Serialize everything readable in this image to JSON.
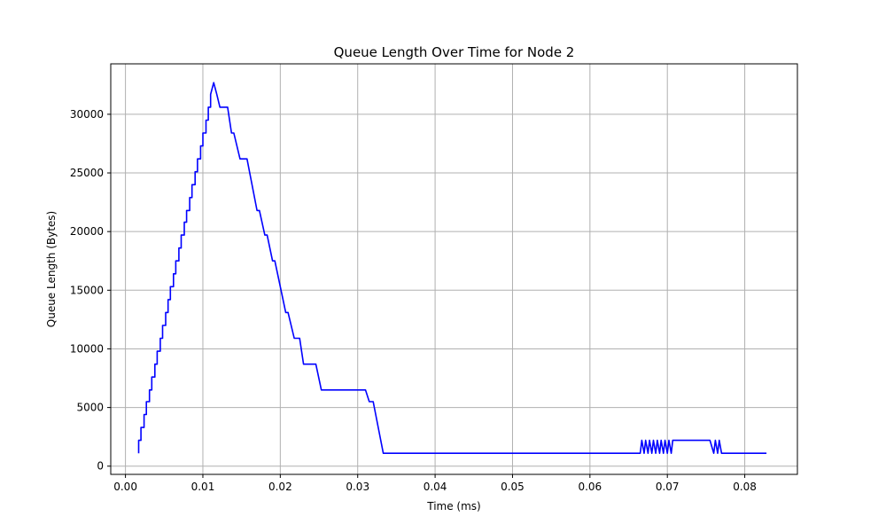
{
  "chart_data": {
    "type": "line",
    "title": "Queue Length Over Time for Node 2",
    "xlabel": "Time (ms)",
    "ylabel": "Queue Length (Bytes)",
    "xlim": [
      -0.0019,
      0.0868
    ],
    "ylim": [
      -700,
      34300
    ],
    "xticks": [
      0.0,
      0.01,
      0.02,
      0.03,
      0.04,
      0.05,
      0.06,
      0.07,
      0.08
    ],
    "xtick_labels": [
      "0.00",
      "0.01",
      "0.02",
      "0.03",
      "0.04",
      "0.05",
      "0.06",
      "0.07",
      "0.08"
    ],
    "yticks": [
      0,
      5000,
      10000,
      15000,
      20000,
      25000,
      30000
    ],
    "ytick_labels": [
      "0",
      "5000",
      "10000",
      "15000",
      "20000",
      "25000",
      "30000"
    ],
    "grid": true,
    "colors": {
      "line": "#0000ff",
      "grid": "#b0b0b0",
      "axes": "#000000"
    },
    "series": [
      {
        "x": [
          0.0017,
          0.0017,
          0.002,
          0.002,
          0.0024,
          0.0024,
          0.0027,
          0.0027,
          0.0031,
          0.0031,
          0.0034,
          0.0034,
          0.0038,
          0.0038,
          0.0041,
          0.0041,
          0.0045,
          0.0045,
          0.0048,
          0.0048,
          0.0052,
          0.0052,
          0.0055,
          0.0055,
          0.0058,
          0.0058,
          0.0062,
          0.0062,
          0.0065,
          0.0065,
          0.0069,
          0.0069,
          0.0072,
          0.0072,
          0.0076,
          0.0076,
          0.0079,
          0.0079,
          0.0083,
          0.0083,
          0.0086,
          0.0086,
          0.009,
          0.009,
          0.0093,
          0.0093,
          0.0097,
          0.0097,
          0.01,
          0.01,
          0.0104,
          0.0104,
          0.0107,
          0.0107,
          0.011,
          0.011,
          0.0114,
          0.0118,
          0.0122,
          0.0132,
          0.0137,
          0.014,
          0.0148,
          0.0157,
          0.017,
          0.0173,
          0.018,
          0.0183,
          0.019,
          0.0193,
          0.0207,
          0.021,
          0.0218,
          0.0225,
          0.023,
          0.0246,
          0.0253,
          0.0278,
          0.031,
          0.0315,
          0.032,
          0.0333,
          0.04,
          0.05,
          0.06,
          0.0665,
          0.0667,
          0.067,
          0.0672,
          0.0675,
          0.0677,
          0.068,
          0.0682,
          0.0685,
          0.0687,
          0.069,
          0.0692,
          0.0695,
          0.0697,
          0.07,
          0.0702,
          0.0705,
          0.0707,
          0.071,
          0.0755,
          0.076,
          0.0762,
          0.0765,
          0.0767,
          0.077,
          0.0772,
          0.0775,
          0.08,
          0.0828
        ],
        "y": [
          1100,
          2200,
          2200,
          3300,
          3300,
          4400,
          4400,
          5500,
          5500,
          6500,
          6500,
          7600,
          7600,
          8700,
          8700,
          9800,
          9800,
          10900,
          10900,
          12000,
          12000,
          13100,
          13100,
          14200,
          14200,
          15300,
          15300,
          16400,
          16400,
          17500,
          17500,
          18600,
          18600,
          19700,
          19700,
          20800,
          20800,
          21800,
          21800,
          22900,
          22900,
          24000,
          24000,
          25100,
          25100,
          26200,
          26200,
          27300,
          27300,
          28400,
          28400,
          29500,
          29500,
          30600,
          30600,
          31700,
          32700,
          31700,
          30600,
          30600,
          28400,
          28400,
          26200,
          26200,
          21800,
          21800,
          19700,
          19700,
          17500,
          17500,
          13100,
          13100,
          10900,
          10900,
          8700,
          8700,
          6500,
          6500,
          6500,
          5500,
          5500,
          1100,
          1100,
          1100,
          1100,
          1100,
          2200,
          1100,
          2200,
          1100,
          2200,
          1100,
          2200,
          1100,
          2200,
          1100,
          2200,
          1100,
          2200,
          1100,
          2200,
          1100,
          2200,
          2200,
          2200,
          1100,
          2200,
          1100,
          2200,
          1100,
          1100,
          1100,
          1100,
          1100
        ]
      }
    ]
  }
}
